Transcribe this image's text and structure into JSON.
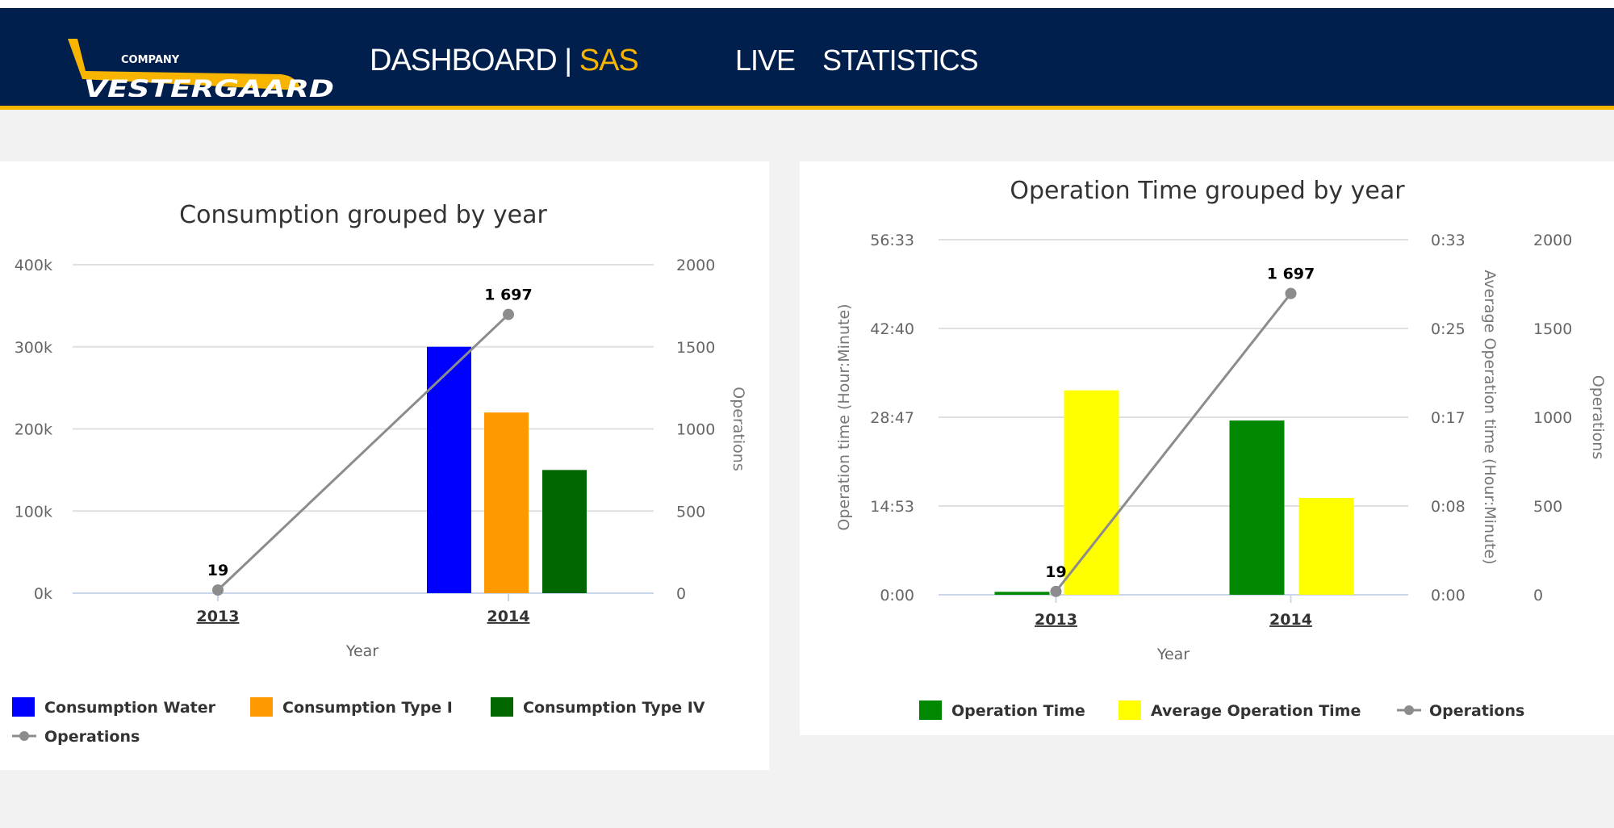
{
  "header": {
    "logo_top": "COMPANY",
    "logo_name": "VESTERGAARD",
    "title": "DASHBOARD",
    "separator": "|",
    "subtitle": "SAS",
    "nav": [
      {
        "label": "LIVE"
      },
      {
        "label": "STATISTICS"
      }
    ]
  },
  "colors": {
    "header_bg": "#001f4d",
    "accent": "#f7b500"
  },
  "chart_data": [
    {
      "type": "bar",
      "title": "Consumption grouped by year",
      "xlabel": "Year",
      "categories": [
        "2013",
        "2014"
      ],
      "y_axes": [
        {
          "ticks": [
            "0k",
            "100k",
            "200k",
            "300k",
            "400k"
          ],
          "range": [
            0,
            400000
          ]
        },
        {
          "title": "Operations",
          "ticks": [
            "0",
            "500",
            "1000",
            "1500",
            "2000"
          ],
          "range": [
            0,
            2000
          ]
        }
      ],
      "series": [
        {
          "name": "Consumption Water",
          "type": "bar",
          "axis": 0,
          "color": "#0000ff",
          "values": [
            0,
            300000
          ]
        },
        {
          "name": "Consumption Type I",
          "type": "bar",
          "axis": 0,
          "color": "#ff9900",
          "values": [
            0,
            220000
          ]
        },
        {
          "name": "Consumption Type IV",
          "type": "bar",
          "axis": 0,
          "color": "#006600",
          "values": [
            0,
            150000
          ]
        },
        {
          "name": "Operations",
          "type": "line",
          "axis": 1,
          "color": "#8c8c8c",
          "values": [
            19,
            1697
          ],
          "labels": [
            "19",
            "1 697"
          ]
        }
      ],
      "grid": true,
      "legend": "bottom"
    },
    {
      "type": "bar",
      "title": "Operation Time grouped by year",
      "xlabel": "Year",
      "categories": [
        "2013",
        "2014"
      ],
      "y_axes": [
        {
          "title": "Operation time (Hour:Minute)",
          "ticks": [
            "0:00",
            "14:53",
            "28:47",
            "42:40",
            "56:33"
          ],
          "range": [
            "0:00",
            "56:33"
          ]
        },
        {
          "title": "Average Operation time (Hour:Minute)",
          "ticks": [
            "0:00",
            "0:08",
            "0:17",
            "0:25",
            "0:33"
          ],
          "range": [
            "0:00",
            "0:33"
          ]
        },
        {
          "title": "Operations",
          "ticks": [
            "0",
            "500",
            "1000",
            "1500",
            "2000"
          ],
          "range": [
            0,
            2000
          ]
        }
      ],
      "series": [
        {
          "name": "Operation Time",
          "type": "bar",
          "axis": 0,
          "color": "#008800",
          "values": [
            "0:28",
            "27:45"
          ]
        },
        {
          "name": "Average Operation Time",
          "type": "bar",
          "axis": 1,
          "color": "#ffff00",
          "values": [
            "0:19",
            "0:09"
          ]
        },
        {
          "name": "Operations",
          "type": "line",
          "axis": 2,
          "color": "#8c8c8c",
          "values": [
            19,
            1697
          ],
          "labels": [
            "19",
            "1 697"
          ]
        }
      ],
      "grid": true,
      "legend": "bottom"
    }
  ]
}
